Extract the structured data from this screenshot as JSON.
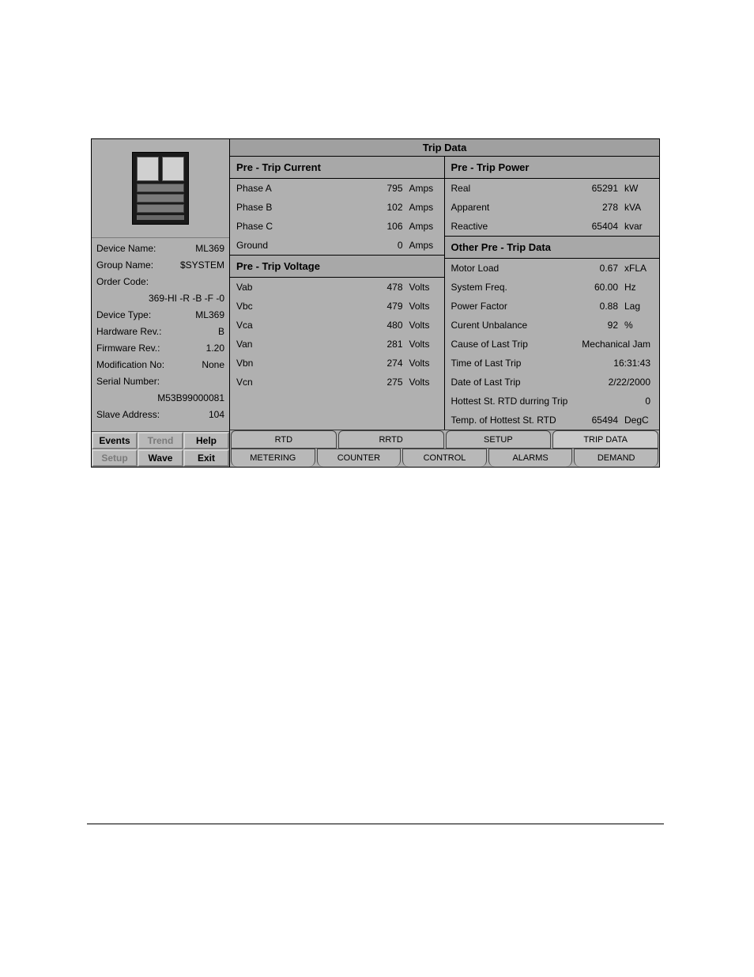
{
  "info": {
    "device_name_label": "Device Name:",
    "device_name": "ML369",
    "group_name_label": "Group Name:",
    "group_name": "$SYSTEM",
    "order_code_label": "Order Code:",
    "order_code": "369-HI -R -B -F -0",
    "device_type_label": "Device Type:",
    "device_type": "ML369",
    "hw_rev_label": "Hardware Rev.:",
    "hw_rev": "B",
    "fw_rev_label": "Firmware Rev.:",
    "fw_rev": "1.20",
    "mod_no_label": "Modification No:",
    "mod_no": "None",
    "serial_label": "Serial Number:",
    "serial": "M53B99000081",
    "slave_addr_label": "Slave Address:",
    "slave_addr": "104"
  },
  "buttons": {
    "events": "Events",
    "trend": "Trend",
    "help": "Help",
    "setup": "Setup",
    "wave": "Wave",
    "exit": "Exit"
  },
  "title": "Trip Data",
  "sections": {
    "current_hdr": "Pre - Trip Current",
    "voltage_hdr": "Pre - Trip Voltage",
    "power_hdr": "Pre - Trip Power",
    "other_hdr": "Other Pre - Trip Data"
  },
  "current": [
    {
      "label": "Phase A",
      "val": "795",
      "unit": "Amps"
    },
    {
      "label": "Phase B",
      "val": "102",
      "unit": "Amps"
    },
    {
      "label": "Phase C",
      "val": "106",
      "unit": "Amps"
    },
    {
      "label": "Ground",
      "val": "0",
      "unit": "Amps"
    }
  ],
  "voltage": [
    {
      "label": "Vab",
      "val": "478",
      "unit": "Volts"
    },
    {
      "label": "Vbc",
      "val": "479",
      "unit": "Volts"
    },
    {
      "label": "Vca",
      "val": "480",
      "unit": "Volts"
    },
    {
      "label": "Van",
      "val": "281",
      "unit": "Volts"
    },
    {
      "label": "Vbn",
      "val": "274",
      "unit": "Volts"
    },
    {
      "label": "Vcn",
      "val": "275",
      "unit": "Volts"
    }
  ],
  "power": [
    {
      "label": "Real",
      "val": "65291",
      "unit": "kW"
    },
    {
      "label": "Apparent",
      "val": "278",
      "unit": "kVA"
    },
    {
      "label": "Reactive",
      "val": "65404",
      "unit": "kvar"
    }
  ],
  "other": [
    {
      "label": "Motor Load",
      "val": "0.67",
      "unit": "xFLA"
    },
    {
      "label": "System Freq.",
      "val": "60.00",
      "unit": "Hz"
    },
    {
      "label": "Power Factor",
      "val": "0.88",
      "unit": "Lag"
    },
    {
      "label": "Curent Unbalance",
      "val": "92",
      "unit": "%"
    },
    {
      "label": "Cause of Last Trip",
      "val": "Mechanical Jam",
      "unit": ""
    },
    {
      "label": "Time of Last Trip",
      "val": "16:31:43",
      "unit": ""
    },
    {
      "label": "Date of Last Trip",
      "val": "2/22/2000",
      "unit": ""
    },
    {
      "label": "Hottest St. RTD durring Trip",
      "val": "0",
      "unit": ""
    },
    {
      "label": "Temp. of Hottest St. RTD",
      "val": "65494",
      "unit": "DegC"
    }
  ],
  "tabs_top": [
    "RTD",
    "RRTD",
    "SETUP",
    "TRIP DATA"
  ],
  "tabs_bottom": [
    "METERING",
    "COUNTER",
    "CONTROL",
    "ALARMS",
    "DEMAND"
  ]
}
